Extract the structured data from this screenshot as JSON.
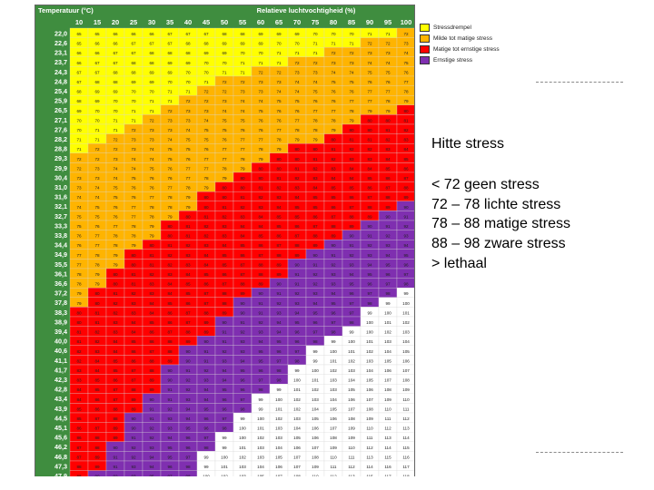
{
  "chart_data": {
    "type": "heatmap",
    "title": "",
    "xlabel": "Relatieve luchtvochtigheid (%)",
    "ylabel": "Temperatuur (°C)",
    "x": [
      10,
      15,
      20,
      25,
      30,
      35,
      40,
      45,
      50,
      55,
      60,
      65,
      70,
      75,
      80,
      85,
      90,
      95,
      100
    ],
    "y": [
      22.0,
      22.6,
      23.1,
      23.7,
      24.3,
      24.8,
      25.4,
      25.9,
      26.5,
      27.1,
      27.6,
      28.2,
      28.8,
      29.3,
      29.9,
      30.4,
      31.0,
      31.6,
      32.1,
      32.7,
      33.3,
      33.8,
      34.4,
      34.9,
      35.5,
      36.1,
      36.6,
      37.2,
      37.8,
      38.3,
      38.9,
      39.4,
      40.0,
      40.6,
      41.1,
      41.7,
      42.3,
      42.8,
      43.4,
      43.9,
      44.5,
      45.1,
      45.6,
      46.2,
      46.8,
      47.3,
      47.9
    ],
    "z_rule": "THI = round(1.8*T + 32 - (0.55 - 0.0055*RH) * (1.8*T - 26))",
    "categories": [
      {
        "label": "Stressdrempel",
        "color": "#ffff00"
      },
      {
        "label": "Milde tot matige stress",
        "color": "#ffb400"
      },
      {
        "label": "Matige tot ernstige stress",
        "color": "#ff0000"
      },
      {
        "label": "Ernstige stress",
        "color": "#7f2fb0"
      }
    ],
    "above_color": "#ffffff"
  },
  "header": {
    "temperature_label": "Temperatuur (°C)",
    "humidity_label": "Relatieve luchtvochtigheid (%)"
  },
  "caption": "Hitte stress",
  "ranges": [
    "< 72 geen stress",
    "72 – 78 lichte stress",
    "78 – 88 matige stress",
    "88 – 98  zware stress",
    "> lethaal"
  ]
}
